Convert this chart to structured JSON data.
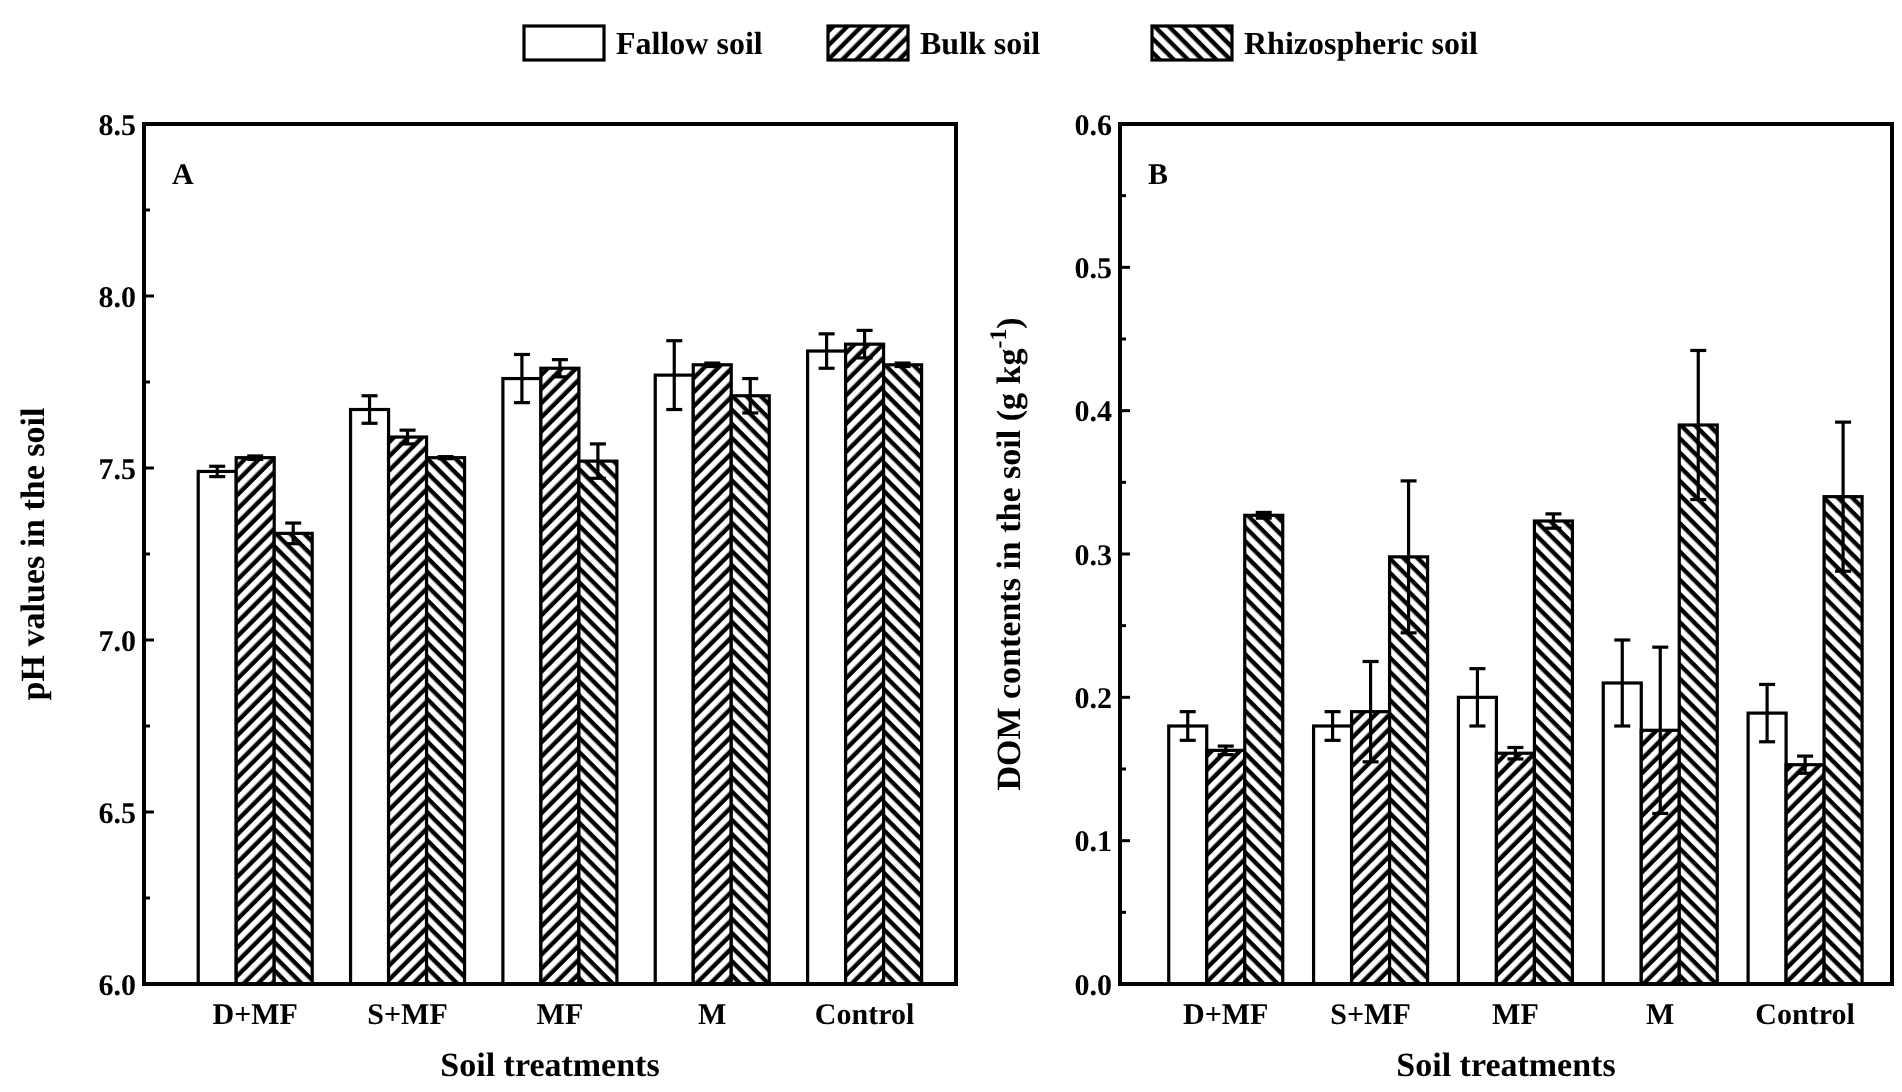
{
  "chart_data": [
    {
      "type": "bar",
      "xlabel": "Soil treatments",
      "ylabel": "pH values in the soil",
      "annotations": [
        "A"
      ],
      "legend": "top",
      "categories": [
        "D+MF",
        "S+MF",
        "MF",
        "M",
        "Control"
      ],
      "ylim": [
        6.0,
        8.5
      ],
      "yticks": [
        {
          "value": 6.0,
          "label": "6.0"
        },
        {
          "value": 6.25,
          "label": null
        },
        {
          "value": 6.5,
          "label": "6.5"
        },
        {
          "value": 6.75,
          "label": null
        },
        {
          "value": 7.0,
          "label": "7.0"
        },
        {
          "value": 7.25,
          "label": null
        },
        {
          "value": 7.5,
          "label": "7.5"
        },
        {
          "value": 7.75,
          "label": null
        },
        {
          "value": 8.0,
          "label": "8.0"
        },
        {
          "value": 8.25,
          "label": null
        },
        {
          "value": 8.5,
          "label": "8.5"
        }
      ],
      "series": [
        {
          "name": "Fallow soil",
          "color": "#ffffff",
          "values": [
            7.49,
            7.67,
            7.76,
            7.77,
            7.84
          ],
          "errors": [
            0.015,
            0.04,
            0.07,
            0.1,
            0.05
          ]
        },
        {
          "name": "Bulk soil",
          "color": "#000000",
          "values": [
            7.53,
            7.59,
            7.79,
            7.8,
            7.86
          ],
          "errors": [
            0.005,
            0.02,
            0.025,
            0.005,
            0.04
          ]
        },
        {
          "name": "Rhizospheric soil",
          "color": "#000000",
          "values": [
            7.31,
            7.53,
            7.52,
            7.71,
            7.8
          ],
          "errors": [
            0.03,
            0.003,
            0.05,
            0.05,
            0.005
          ]
        }
      ]
    },
    {
      "type": "bar",
      "xlabel": "Soil treatments",
      "ylabel": "DOM contents in the soil (g kg$^{-1}$)",
      "annotations": [
        "B"
      ],
      "categories": [
        "D+MF",
        "S+MF",
        "MF",
        "M",
        "Control"
      ],
      "ylim": [
        0.0,
        0.6
      ],
      "yticks": [
        {
          "value": 0.0,
          "label": "0.0"
        },
        {
          "value": 0.05,
          "label": null
        },
        {
          "value": 0.1,
          "label": "0.1"
        },
        {
          "value": 0.15,
          "label": null
        },
        {
          "value": 0.2,
          "label": "0.2"
        },
        {
          "value": 0.25,
          "label": null
        },
        {
          "value": 0.3,
          "label": "0.3"
        },
        {
          "value": 0.35,
          "label": null
        },
        {
          "value": 0.4,
          "label": "0.4"
        },
        {
          "value": 0.45,
          "label": null
        },
        {
          "value": 0.5,
          "label": "0.5"
        },
        {
          "value": 0.55,
          "label": null
        },
        {
          "value": 0.6,
          "label": "0.6"
        }
      ],
      "series": [
        {
          "color": "#ffffff",
          "values": [
            0.18,
            0.18,
            0.2,
            0.21,
            0.189
          ],
          "errors": [
            0.01,
            0.01,
            0.02,
            0.03,
            0.02
          ]
        },
        {
          "color": "#000000",
          "values": [
            0.163,
            0.19,
            0.161,
            0.177,
            0.153
          ],
          "errors": [
            0.003,
            0.035,
            0.004,
            0.058,
            0.006
          ]
        },
        {
          "color": "#000000",
          "values": [
            0.327,
            0.298,
            0.323,
            0.39,
            0.34
          ],
          "errors": [
            0.002,
            0.053,
            0.005,
            0.052,
            0.052
          ]
        }
      ]
    }
  ]
}
